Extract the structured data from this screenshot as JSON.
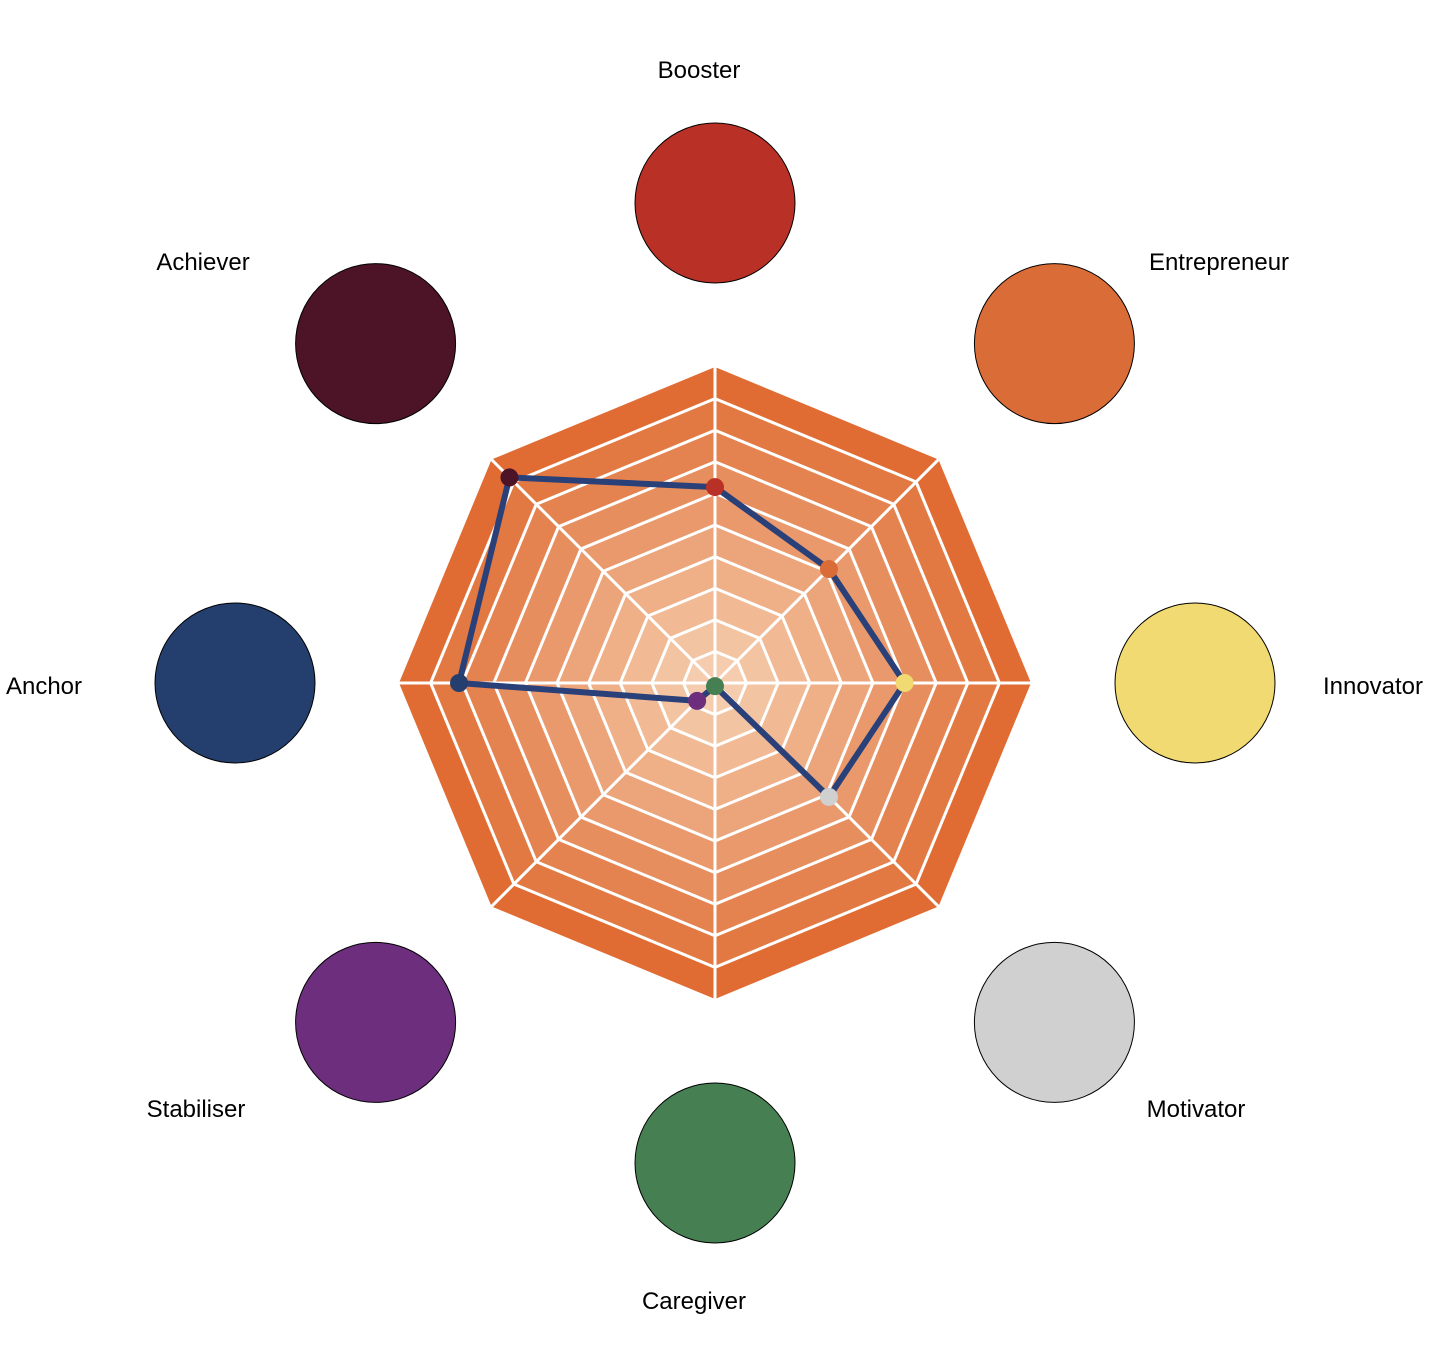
{
  "chart_data": {
    "type": "radar",
    "title": "",
    "categories": [
      "Booster",
      "Entrepreneur",
      "Innovator",
      "Motivator",
      "Caregiver",
      "Stabiliser",
      "Anchor",
      "Achiever"
    ],
    "category_colors": [
      "#B93026",
      "#DA6C38",
      "#F1DA72",
      "#D0D0D0",
      "#467F52",
      "#6D2F7D",
      "#243F6E",
      "#4C1426"
    ],
    "rlim": [
      0,
      10
    ],
    "rings": 10,
    "band_colors": [
      "#F5CCAD",
      "#F3C4A1",
      "#F1BA94",
      "#EFB088",
      "#ECA47A",
      "#E9996C",
      "#E78E5E",
      "#E58350",
      "#E37942",
      "#E06C33"
    ],
    "grid_color": "#FFFFFF",
    "series": [
      {
        "values": [
          6.2,
          5.1,
          6.0,
          5.1,
          0.1,
          0.8,
          8.1,
          9.2
        ],
        "color": "#2A4078"
      }
    ]
  }
}
